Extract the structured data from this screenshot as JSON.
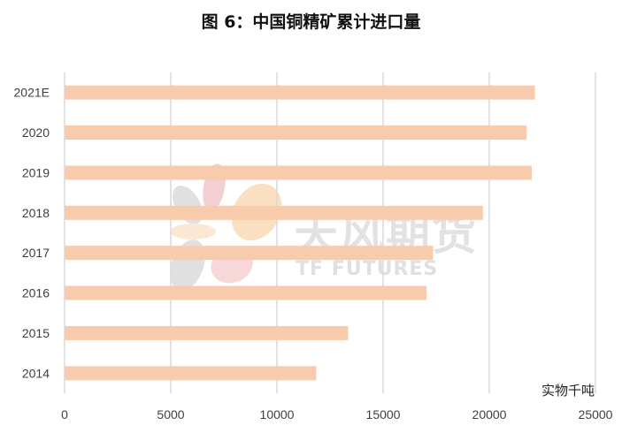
{
  "chart_data": {
    "type": "bar",
    "orientation": "horizontal",
    "title": "图 6：中国铜精矿累计进口量",
    "unit_label": "实物千吨",
    "categories": [
      "2021E",
      "2020",
      "2019",
      "2018",
      "2017",
      "2016",
      "2015",
      "2014"
    ],
    "values": [
      22150,
      21760,
      22000,
      19700,
      17350,
      17050,
      13350,
      11850
    ],
    "xlim": [
      0,
      25000
    ],
    "xticks": [
      "0",
      "5000",
      "10000",
      "15000",
      "20000",
      "25000"
    ],
    "grid": "vertical",
    "bar_color": "#f8cbad"
  },
  "watermark": {
    "text": "天风期货",
    "subtext": "TF FUTURES"
  }
}
